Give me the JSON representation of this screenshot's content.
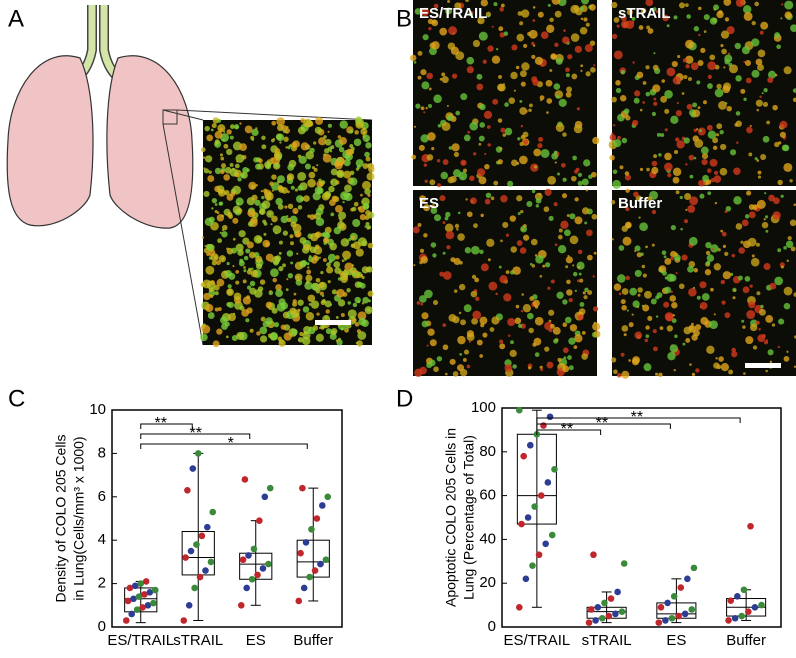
{
  "panel_labels": [
    "A",
    "B",
    "C",
    "D"
  ],
  "image_labels": [
    "ES/TRAIL",
    "sTRAIL",
    "ES",
    "Buffer"
  ],
  "chart_data": [
    {
      "type": "box",
      "y_label": [
        "Density of COLO 205 Cells",
        "in Lung(Cells/mm³ x 1000)"
      ],
      "categories": [
        "ES/TRAIL",
        "sTRAIL",
        "ES",
        "Buffer"
      ],
      "ylim": [
        0,
        10
      ],
      "yticks": [
        0,
        2,
        4,
        6,
        8,
        10
      ],
      "boxes": [
        {
          "min": 0.2,
          "q1": 0.7,
          "median": 1.3,
          "q3": 1.8,
          "max": 2.1
        },
        {
          "min": 0.3,
          "q1": 2.4,
          "median": 3.2,
          "q3": 4.4,
          "max": 8.0
        },
        {
          "min": 1.0,
          "q1": 2.2,
          "median": 2.9,
          "q3": 3.4,
          "max": 4.9
        },
        {
          "min": 1.2,
          "q1": 2.3,
          "median": 3.0,
          "q3": 4.0,
          "max": 6.4
        }
      ],
      "points": [
        [
          0.3,
          0.6,
          0.8,
          0.9,
          1.0,
          1.1,
          1.2,
          1.3,
          1.4,
          1.5,
          1.6,
          1.7,
          1.8,
          1.9,
          2.0,
          2.1
        ],
        [
          0.3,
          1.0,
          1.8,
          2.3,
          2.6,
          3.0,
          3.2,
          3.5,
          3.8,
          4.2,
          4.6,
          5.3,
          6.3,
          7.3,
          8.0
        ],
        [
          1.0,
          1.8,
          2.2,
          2.4,
          2.7,
          2.9,
          3.1,
          3.3,
          3.6,
          4.9,
          6.0,
          6.4,
          6.8
        ],
        [
          1.2,
          1.8,
          2.3,
          2.6,
          2.9,
          3.1,
          3.4,
          3.9,
          4.5,
          5.0,
          5.6,
          6.0,
          6.4
        ]
      ],
      "point_palette": [
        "#c0272d",
        "#2e3d94",
        "#3a8a3a"
      ],
      "annotations": [
        "**",
        "**",
        "*"
      ]
    },
    {
      "type": "box",
      "y_label": [
        "Apoptotic COLO 205 Cells in",
        "Lung (Percentage of Total)"
      ],
      "categories": [
        "ES/TRAIL",
        "sTRAIL",
        "ES",
        "Buffer"
      ],
      "ylim": [
        0,
        100
      ],
      "yticks": [
        0,
        20,
        40,
        60,
        80,
        100
      ],
      "boxes": [
        {
          "min": 9,
          "q1": 47,
          "median": 60,
          "q3": 88,
          "max": 99
        },
        {
          "min": 2,
          "q1": 4,
          "median": 7,
          "q3": 9,
          "max": 16
        },
        {
          "min": 2,
          "q1": 4,
          "median": 6,
          "q3": 11,
          "max": 22
        },
        {
          "min": 3,
          "q1": 5,
          "median": 9,
          "q3": 13,
          "max": 17
        }
      ],
      "points": [
        [
          9,
          22,
          28,
          33,
          38,
          42,
          47,
          50,
          55,
          60,
          66,
          72,
          78,
          83,
          88,
          92,
          96,
          99
        ],
        [
          2,
          3,
          4,
          5,
          6,
          7,
          8,
          9,
          11,
          13,
          16,
          29,
          33
        ],
        [
          2,
          3,
          4,
          5,
          6,
          8,
          9,
          11,
          14,
          18,
          22,
          27
        ],
        [
          3,
          4,
          5,
          7,
          9,
          10,
          12,
          14,
          17,
          46
        ]
      ],
      "point_palette": [
        "#c0272d",
        "#2e3d94",
        "#3a8a3a"
      ],
      "annotations": [
        "**",
        "**",
        "**"
      ]
    }
  ]
}
